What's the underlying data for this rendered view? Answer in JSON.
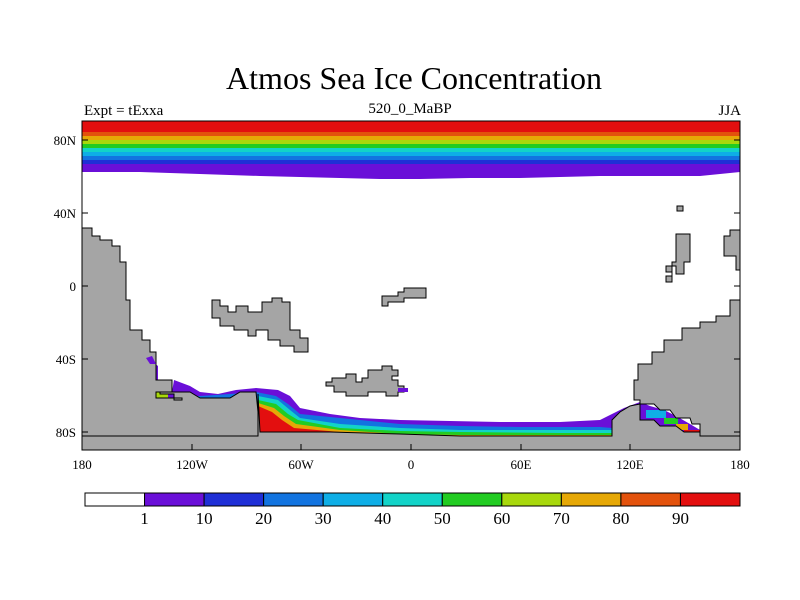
{
  "title": "Atmos Sea Ice Concentration",
  "subtitle_left": "Expt = tExxa",
  "subtitle_center": "520_0_MaBP",
  "subtitle_right": "JJA",
  "lat_labels": [
    "80N",
    "40N",
    "0",
    "40S",
    "80S"
  ],
  "lon_labels": [
    "180",
    "120W",
    "60W",
    "0",
    "60E",
    "120E",
    "180"
  ],
  "colorbar": {
    "labels": [
      "1",
      "10",
      "20",
      "30",
      "40",
      "50",
      "60",
      "70",
      "80",
      "90"
    ],
    "colors": [
      "#ffffff",
      "#6a0fd8",
      "#1f2fd6",
      "#1274e0",
      "#0eaee6",
      "#12d3c8",
      "#22cc22",
      "#a8d80c",
      "#e6a806",
      "#e3520c",
      "#e30f0f"
    ]
  },
  "land_color": "#a5a5a5"
}
